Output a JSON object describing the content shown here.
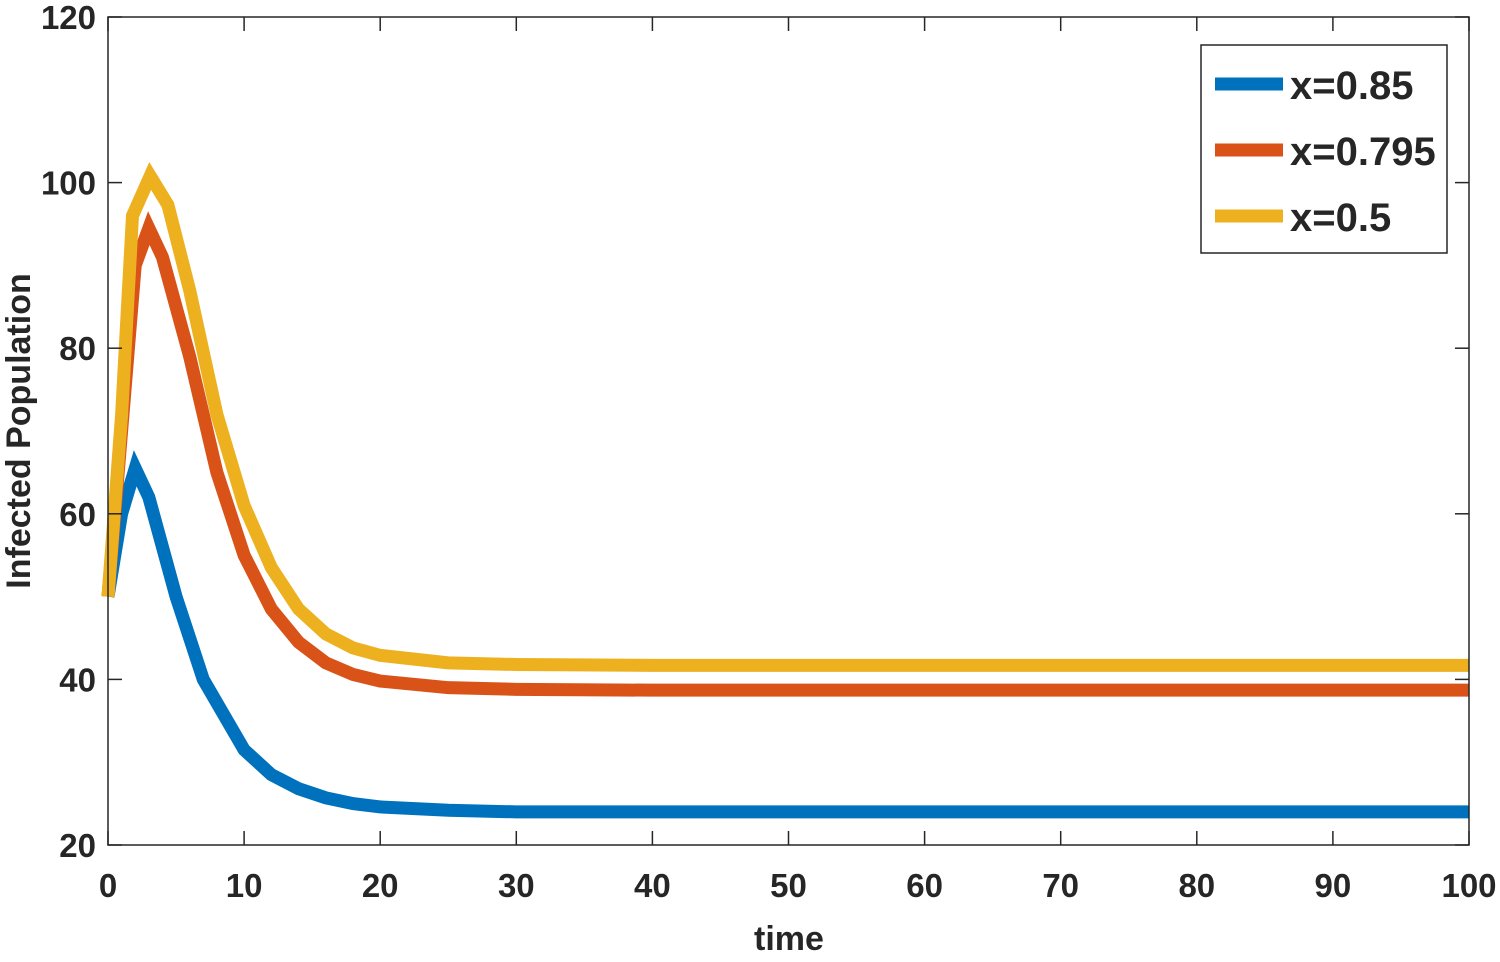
{
  "chart_data": {
    "type": "line",
    "title": "",
    "xlabel": "time",
    "ylabel": "Infected Population",
    "xlim": [
      0,
      100
    ],
    "ylim": [
      20,
      120
    ],
    "xticks": [
      0,
      10,
      20,
      30,
      40,
      50,
      60,
      70,
      80,
      90,
      100
    ],
    "yticks": [
      20,
      40,
      60,
      80,
      100,
      120
    ],
    "grid": false,
    "legend_position": "top-right",
    "series": [
      {
        "name": "x=0.85",
        "color": "#0072BD",
        "x": [
          0,
          1,
          2,
          3,
          5,
          7,
          10,
          12,
          14,
          16,
          18,
          20,
          25,
          30,
          40,
          100
        ],
        "y": [
          50,
          60,
          65.5,
          62,
          50,
          40,
          31.5,
          28.5,
          26.8,
          25.7,
          25,
          24.6,
          24.2,
          24,
          24,
          24
        ]
      },
      {
        "name": "x=0.795",
        "color": "#D95319",
        "x": [
          0,
          1,
          2,
          3,
          4,
          6,
          8,
          10,
          12,
          14,
          16,
          18,
          20,
          25,
          30,
          40,
          100
        ],
        "y": [
          50,
          70,
          90,
          94.5,
          91,
          79,
          65,
          55,
          48.5,
          44.5,
          42,
          40.6,
          39.8,
          39,
          38.8,
          38.7,
          38.7
        ]
      },
      {
        "name": "x=0.5",
        "color": "#EDB120",
        "x": [
          0,
          1,
          1.8,
          3.1,
          4.4,
          6,
          8,
          10,
          12,
          14,
          16,
          18,
          20,
          25,
          30,
          40,
          100
        ],
        "y": [
          50,
          72,
          96,
          100.8,
          97.3,
          87,
          72,
          61,
          53.5,
          48.5,
          45.5,
          43.8,
          42.9,
          42,
          41.8,
          41.7,
          41.7
        ]
      }
    ]
  }
}
